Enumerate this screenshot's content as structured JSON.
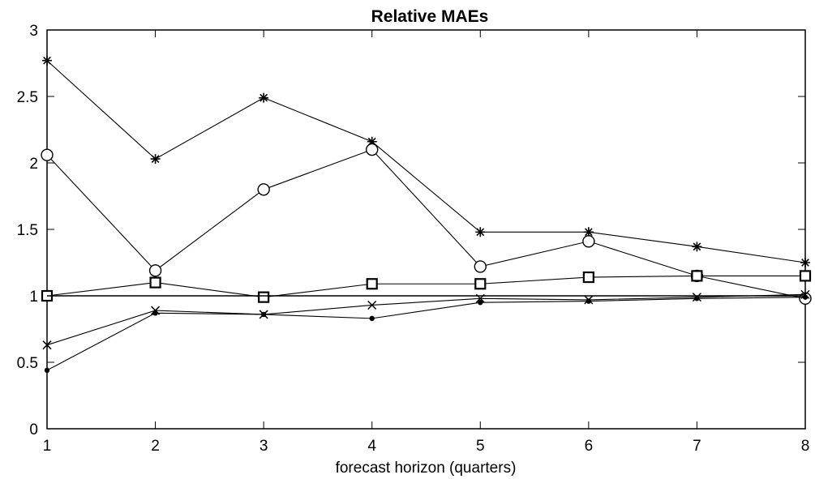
{
  "chart_data": {
    "type": "line",
    "title": "Relative MAEs",
    "xlabel": "forecast horizon (quarters)",
    "ylabel": "",
    "xlim": [
      1,
      8
    ],
    "ylim": [
      0,
      3
    ],
    "xticks": [
      "1",
      "2",
      "3",
      "4",
      "5",
      "6",
      "7",
      "8"
    ],
    "yticks": [
      "0",
      "0.5",
      "1",
      "1.5",
      "2",
      "2.5",
      "3"
    ],
    "grid": false,
    "x": [
      1,
      2,
      3,
      4,
      5,
      6,
      7,
      8
    ],
    "series": [
      {
        "marker": "asterisk",
        "values": [
          2.77,
          2.03,
          2.49,
          2.16,
          1.48,
          1.48,
          1.37,
          1.25
        ]
      },
      {
        "marker": "circle",
        "values": [
          2.06,
          1.19,
          1.8,
          2.1,
          1.22,
          1.41,
          1.15,
          0.98
        ]
      },
      {
        "marker": "square",
        "values": [
          1.0,
          1.1,
          0.99,
          1.09,
          1.09,
          1.14,
          1.15,
          1.15
        ]
      },
      {
        "marker": "none",
        "values": [
          1.0,
          1.0,
          1.0,
          1.0,
          1.0,
          1.0,
          1.0,
          1.0
        ]
      },
      {
        "marker": "x",
        "values": [
          0.63,
          0.89,
          0.86,
          0.93,
          0.98,
          0.97,
          0.99,
          1.01
        ]
      },
      {
        "marker": "dot",
        "values": [
          0.44,
          0.87,
          0.86,
          0.83,
          0.95,
          0.96,
          0.98,
          0.99
        ]
      }
    ],
    "colors": {
      "line": "#000000",
      "marker": "#000000",
      "background": "#ffffff"
    }
  }
}
